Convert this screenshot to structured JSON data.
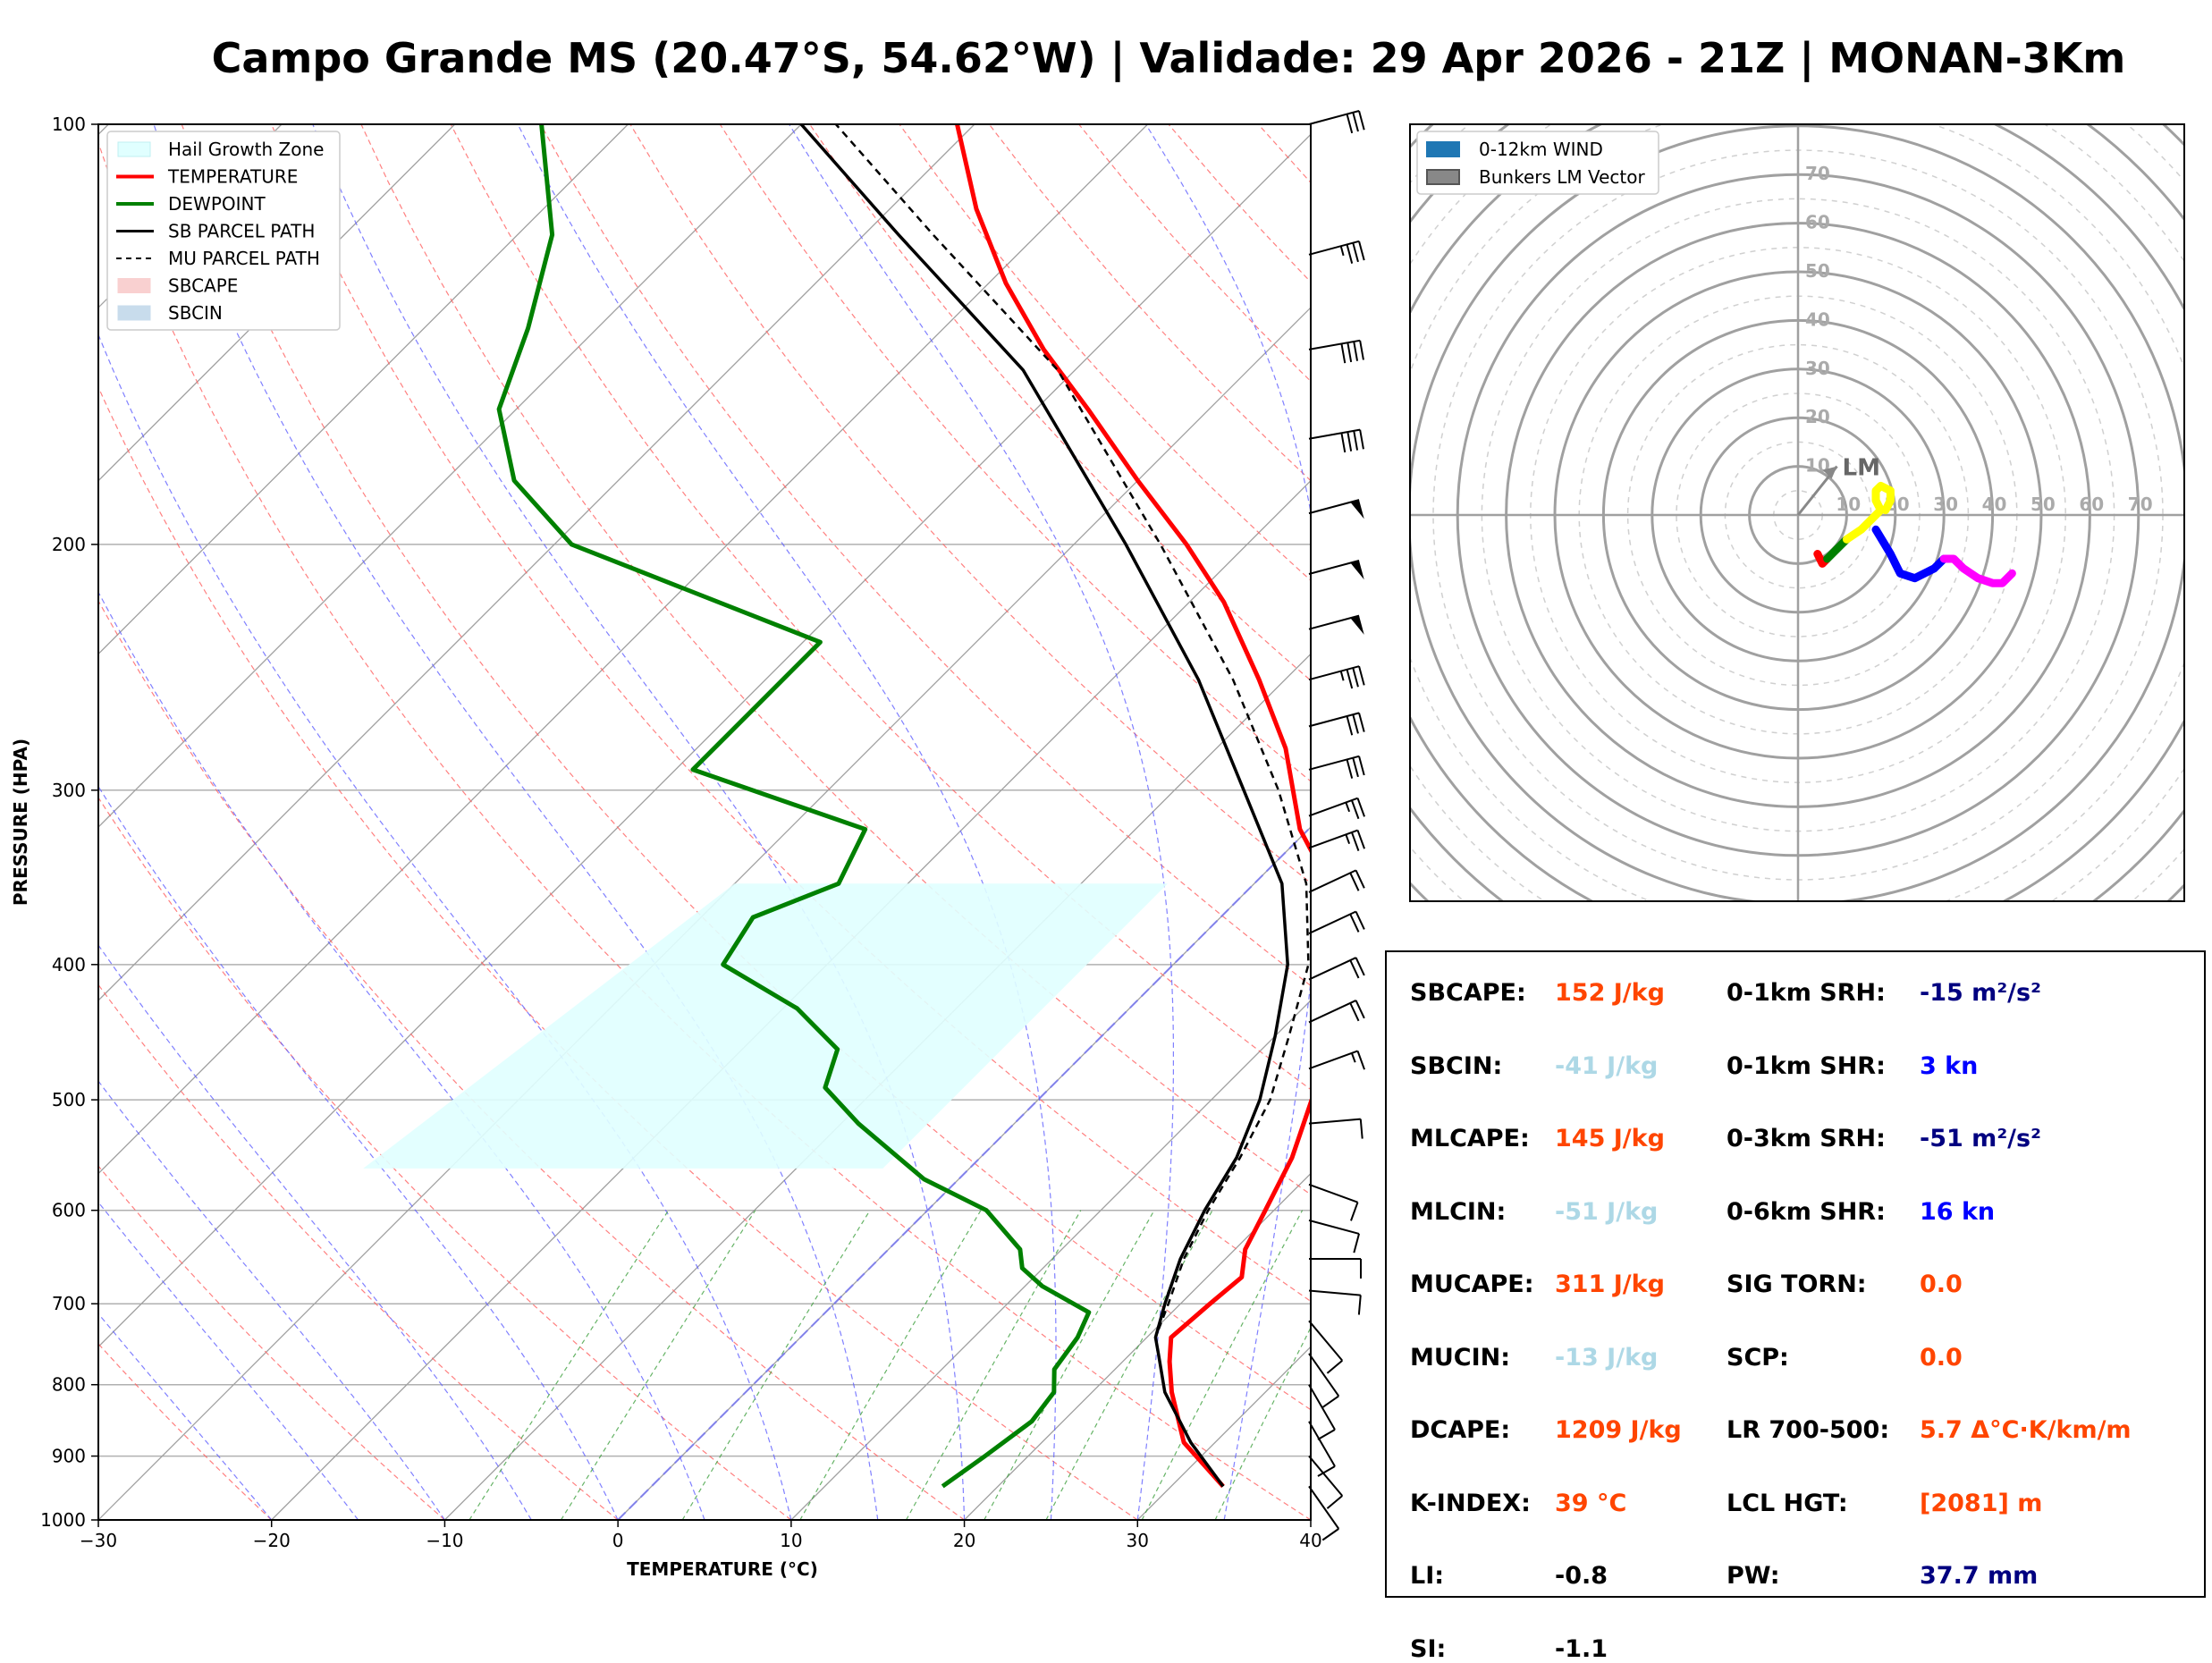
{
  "title": "Campo Grande MS (20.47°S, 54.62°W) | Validade: 29 Apr 2026 - 21Z | MONAN-3Km",
  "chart_data": [
    {
      "type": "line",
      "name": "skew-t",
      "xlabel": "TEMPERATURE (°C)",
      "ylabel": "PRESSURE (HPA)",
      "xlim": [
        -30,
        40
      ],
      "ylim": [
        1000,
        100
      ],
      "log_y": true,
      "skew_per_log_decade": 70,
      "x_ticks": [
        "−30",
        "−20",
        "−10",
        "0",
        "10",
        "20",
        "30",
        "40"
      ],
      "y_ticks": [
        "1000",
        "900",
        "800",
        "700",
        "600",
        "500",
        "400",
        "300",
        "200",
        "100"
      ],
      "grid": true,
      "legend_position": "top-left",
      "legend": [
        {
          "label": "Hail Growth Zone",
          "kind": "patch",
          "color": "#e0ffff",
          "edge": "#bfeff2"
        },
        {
          "label": "TEMPERATURE",
          "kind": "line",
          "color": "#ff0000",
          "width": 4
        },
        {
          "label": "DEWPOINT",
          "kind": "line",
          "color": "#008000",
          "width": 4
        },
        {
          "label": "SB PARCEL PATH",
          "kind": "line",
          "color": "#000000",
          "width": 3
        },
        {
          "label": "MU PARCEL PATH",
          "kind": "dashed",
          "color": "#000000",
          "width": 2
        },
        {
          "label": "SBCAPE",
          "kind": "patch",
          "color": "#f9d0d0",
          "edge": "#f9d0d0"
        },
        {
          "label": "SBCIN",
          "kind": "patch",
          "color": "#c8dcec",
          "edge": "#c8dcec"
        }
      ],
      "series": [
        {
          "name": "TEMPERATURE",
          "color": "#ff0000",
          "points": [
            [
              946,
              33.0
            ],
            [
              880,
              28.2
            ],
            [
              810,
              24.6
            ],
            [
              770,
              22.7
            ],
            [
              740,
              21.4
            ],
            [
              700,
              21.7
            ],
            [
              670,
              22.0
            ],
            [
              640,
              20.6
            ],
            [
              600,
              19.5
            ],
            [
              550,
              18.0
            ],
            [
              500,
              15.8
            ],
            [
              450,
              13.8
            ],
            [
              400,
              10.3
            ],
            [
              360,
              5.8
            ],
            [
              320,
              -0.5
            ],
            [
              280,
              -6.0
            ],
            [
              250,
              -11.5
            ],
            [
              220,
              -18.0
            ],
            [
              200,
              -23.5
            ],
            [
              180,
              -30.0
            ],
            [
              160,
              -37.0
            ],
            [
              145,
              -43.0
            ],
            [
              130,
              -49.0
            ],
            [
              115,
              -55.0
            ],
            [
              100,
              -61.0
            ]
          ]
        },
        {
          "name": "DEWPOINT",
          "color": "#008000",
          "points": [
            [
              946,
              16.8
            ],
            [
              900,
              17.5
            ],
            [
              850,
              18.2
            ],
            [
              810,
              17.8
            ],
            [
              780,
              16.5
            ],
            [
              740,
              16.0
            ],
            [
              710,
              15.2
            ],
            [
              680,
              11.0
            ],
            [
              660,
              8.8
            ],
            [
              640,
              7.6
            ],
            [
              600,
              3.4
            ],
            [
              570,
              -2.0
            ],
            [
              520,
              -9.0
            ],
            [
              490,
              -13.0
            ],
            [
              460,
              -14.5
            ],
            [
              430,
              -19.2
            ],
            [
              400,
              -26.0
            ],
            [
              370,
              -27.0
            ],
            [
              350,
              -24.0
            ],
            [
              320,
              -25.6
            ],
            [
              290,
              -39.0
            ],
            [
              260,
              -39.0
            ],
            [
              235,
              -39.0
            ],
            [
              200,
              -59.0
            ],
            [
              180,
              -66.0
            ],
            [
              160,
              -71.0
            ],
            [
              140,
              -74.0
            ],
            [
              120,
              -78.0
            ],
            [
              100,
              -85.0
            ]
          ]
        },
        {
          "name": "SB PARCEL PATH",
          "color": "#000000",
          "points": [
            [
              946,
              33.0
            ],
            [
              880,
              28.6
            ],
            [
              810,
              24.2
            ],
            [
              760,
              21.6
            ],
            [
              740,
              20.5
            ],
            [
              700,
              19.1
            ],
            [
              650,
              17.4
            ],
            [
              600,
              16.0
            ],
            [
              550,
              14.8
            ],
            [
              500,
              12.8
            ],
            [
              450,
              10.0
            ],
            [
              400,
              6.6
            ],
            [
              350,
              1.6
            ],
            [
              300,
              -6.0
            ],
            [
              250,
              -15.0
            ],
            [
              200,
              -27.0
            ],
            [
              150,
              -43.0
            ],
            [
              120,
              -58.0
            ],
            [
              100,
              -70.0
            ]
          ]
        },
        {
          "name": "MU PARCEL PATH",
          "color": "#000000",
          "dashed": true,
          "points": [
            [
              946,
              33.0
            ],
            [
              880,
              28.6
            ],
            [
              810,
              24.2
            ],
            [
              760,
              21.6
            ],
            [
              740,
              20.5
            ],
            [
              700,
              19.3
            ],
            [
              650,
              17.6
            ],
            [
              600,
              16.2
            ],
            [
              550,
              15.0
            ],
            [
              500,
              13.4
            ],
            [
              450,
              10.8
            ],
            [
              400,
              7.8
            ],
            [
              350,
              3.0
            ],
            [
              300,
              -4.0
            ],
            [
              250,
              -13.0
            ],
            [
              200,
              -25.0
            ],
            [
              150,
              -41.0
            ],
            [
              120,
              -56.0
            ],
            [
              100,
              -68.0
            ]
          ]
        }
      ],
      "hail_growth_zone": {
        "top_hpa": 350,
        "bottom_hpa": 560
      },
      "wind_barbs_knots": [
        {
          "p": 100,
          "dir": 255,
          "spd": 30
        },
        {
          "p": 124,
          "dir": 255,
          "spd": 35
        },
        {
          "p": 145,
          "dir": 260,
          "spd": 40
        },
        {
          "p": 168,
          "dir": 260,
          "spd": 40
        },
        {
          "p": 190,
          "dir": 255,
          "spd": 50
        },
        {
          "p": 210,
          "dir": 255,
          "spd": 50
        },
        {
          "p": 230,
          "dir": 255,
          "spd": 50
        },
        {
          "p": 250,
          "dir": 255,
          "spd": 35
        },
        {
          "p": 270,
          "dir": 255,
          "spd": 30
        },
        {
          "p": 290,
          "dir": 255,
          "spd": 30
        },
        {
          "p": 313,
          "dir": 250,
          "spd": 25
        },
        {
          "p": 330,
          "dir": 250,
          "spd": 25
        },
        {
          "p": 355,
          "dir": 245,
          "spd": 20
        },
        {
          "p": 380,
          "dir": 245,
          "spd": 20
        },
        {
          "p": 410,
          "dir": 245,
          "spd": 20
        },
        {
          "p": 440,
          "dir": 245,
          "spd": 20
        },
        {
          "p": 475,
          "dir": 250,
          "spd": 15
        },
        {
          "p": 520,
          "dir": 265,
          "spd": 10
        },
        {
          "p": 575,
          "dir": 290,
          "spd": 10
        },
        {
          "p": 610,
          "dir": 285,
          "spd": 10
        },
        {
          "p": 650,
          "dir": 270,
          "spd": 10
        },
        {
          "p": 685,
          "dir": 275,
          "spd": 10
        },
        {
          "p": 720,
          "dir": 320,
          "spd": 10
        },
        {
          "p": 760,
          "dir": 325,
          "spd": 10
        },
        {
          "p": 800,
          "dir": 330,
          "spd": 10
        },
        {
          "p": 850,
          "dir": 330,
          "spd": 10
        },
        {
          "p": 900,
          "dir": 320,
          "spd": 10
        },
        {
          "p": 946,
          "dir": 325,
          "spd": 10
        }
      ]
    },
    {
      "type": "line",
      "name": "hodograph",
      "range_labels": [
        "10",
        "20",
        "30",
        "40",
        "50",
        "60",
        "70"
      ],
      "legend_position": "top-left",
      "legend": [
        {
          "label": "0-12km WIND",
          "color": "#1f77b4"
        },
        {
          "label": "Bunkers LM Vector",
          "color": "#888888"
        }
      ],
      "lm_label": "LM",
      "lm_vector": [
        8,
        10
      ],
      "segments": [
        {
          "color": "#ff0000",
          "points": [
            [
              4,
              -8
            ],
            [
              5,
              -10
            ],
            [
              6,
              -9
            ]
          ]
        },
        {
          "color": "#008000",
          "points": [
            [
              6,
              -9
            ],
            [
              7,
              -8
            ],
            [
              8,
              -7
            ],
            [
              9,
              -6
            ],
            [
              10,
              -5
            ]
          ]
        },
        {
          "color": "#ffff00",
          "points": [
            [
              10,
              -5
            ],
            [
              13,
              -3
            ],
            [
              15,
              -1
            ],
            [
              17,
              1
            ],
            [
              16,
              3
            ],
            [
              16,
              5
            ],
            [
              17,
              6
            ],
            [
              19,
              5
            ],
            [
              19,
              3
            ],
            [
              18,
              1
            ]
          ]
        },
        {
          "color": "#0000ff",
          "points": [
            [
              16,
              -3
            ],
            [
              19,
              -8
            ],
            [
              21,
              -12
            ],
            [
              24,
              -13
            ],
            [
              28,
              -11
            ],
            [
              30,
              -9
            ]
          ]
        },
        {
          "color": "#ff00ff",
          "points": [
            [
              30,
              -9
            ],
            [
              32,
              -9
            ],
            [
              34,
              -11
            ],
            [
              37,
              -13
            ],
            [
              40,
              -14
            ],
            [
              42,
              -14
            ],
            [
              44,
              -12
            ]
          ]
        }
      ]
    }
  ],
  "stats": {
    "left": [
      {
        "label": "SBCAPE:",
        "value": "152 J/kg",
        "color": "#ff4500"
      },
      {
        "label": "SBCIN:",
        "value": "-41 J/kg",
        "color": "#add8e6"
      },
      {
        "label": "MLCAPE:",
        "value": "145 J/kg",
        "color": "#ff4500"
      },
      {
        "label": "MLCIN:",
        "value": "-51 J/kg",
        "color": "#add8e6"
      },
      {
        "label": "MUCAPE:",
        "value": "311 J/kg",
        "color": "#ff4500"
      },
      {
        "label": "MUCIN:",
        "value": "-13 J/kg",
        "color": "#add8e6"
      },
      {
        "label": "DCAPE:",
        "value": "1209 J/kg",
        "color": "#ff4500"
      },
      {
        "label": "K-INDEX:",
        "value": "39 °C",
        "color": "#ff4500"
      },
      {
        "label": "LI:",
        "value": "-0.8",
        "color": "#000000"
      },
      {
        "label": "SI:",
        "value": "-1.1",
        "color": "#000000"
      }
    ],
    "right": [
      {
        "label": "0-1km SRH:",
        "value": "-15 m²/s²",
        "color": "#000080"
      },
      {
        "label": "0-1km SHR:",
        "value": "3 kn",
        "color": "#0000ff"
      },
      {
        "label": "0-3km SRH:",
        "value": "-51 m²/s²",
        "color": "#000080"
      },
      {
        "label": "0-6km SHR:",
        "value": "16 kn",
        "color": "#0000ff"
      },
      {
        "label": "SIG TORN:",
        "value": "0.0",
        "color": "#ff4500"
      },
      {
        "label": "SCP:",
        "value": "0.0",
        "color": "#ff4500"
      },
      {
        "label": "LR 700-500:",
        "value": "5.7 Δ°C·K/km/m",
        "color": "#ff4500"
      },
      {
        "label": "LCL HGT:",
        "value": "[2081] m",
        "color": "#ff4500"
      },
      {
        "label": "PW:",
        "value": "37.7 mm",
        "color": "#000080"
      }
    ]
  }
}
